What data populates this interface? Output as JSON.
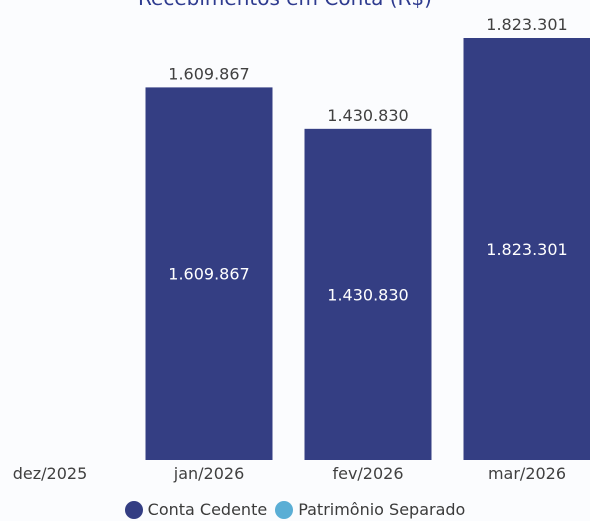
{
  "chart_data": {
    "type": "bar",
    "title": "Recebimentos em Conta (R$)",
    "xlabel": "",
    "ylabel": "",
    "categories": [
      "dez/2025",
      "jan/2026",
      "fev/2026",
      "mar/2026"
    ],
    "series": [
      {
        "name": "Conta Cedente",
        "color": "#343e83",
        "values": [
          0,
          1609867,
          1430830,
          1823301
        ]
      },
      {
        "name": "Patrimônio Separado",
        "color": "#5aaed5",
        "values": [
          0,
          0,
          0,
          0
        ]
      }
    ],
    "total_labels": [
      "",
      "1.609.867",
      "1.430.830",
      "1.823.301"
    ],
    "inner_labels": [
      "",
      "1.609.867",
      "1.430.830",
      "1.823.301"
    ],
    "ylim": [
      0,
      1823301
    ],
    "grid": false,
    "legend_position": "bottom"
  },
  "colors": {
    "title": "#2e3b8f",
    "label": "#404040",
    "bar_text": "#ffffff"
  }
}
